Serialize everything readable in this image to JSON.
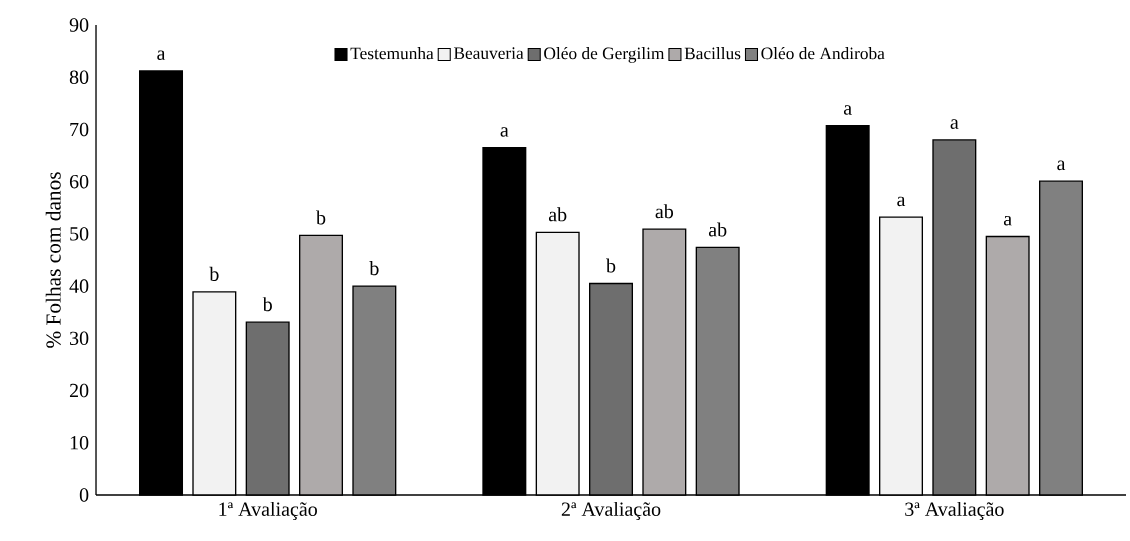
{
  "chart_data": {
    "type": "bar",
    "ylabel": "% Folhas com danos",
    "categories": [
      "1ª Avaliação",
      "2ª Avaliação",
      "3ª Avaliação"
    ],
    "series": [
      {
        "name": "Testemunha",
        "color": "#000000",
        "values": [
          81.2,
          66.5,
          70.7
        ],
        "value_labels": [
          "a",
          "a",
          "a"
        ]
      },
      {
        "name": "Beauveria",
        "color": "#f2f2f2",
        "values": [
          38.9,
          50.3,
          53.2
        ],
        "value_labels": [
          "b",
          "ab",
          "a"
        ]
      },
      {
        "name": "Oléo de Gergilim",
        "color": "#6e6e6e",
        "values": [
          33.1,
          40.5,
          68.0
        ],
        "value_labels": [
          "b",
          "b",
          "a"
        ]
      },
      {
        "name": "Bacillus",
        "color": "#aeaaaa",
        "values": [
          49.7,
          50.9,
          49.5
        ],
        "value_labels": [
          "b",
          "ab",
          "a"
        ]
      },
      {
        "name": "Oléo de Andiroba",
        "color": "#808080",
        "values": [
          40.0,
          47.4,
          60.1
        ],
        "value_labels": [
          "b",
          "ab",
          "a"
        ]
      }
    ],
    "ylim": [
      0,
      90
    ],
    "yticks": [
      0,
      10,
      20,
      30,
      40,
      50,
      60,
      70,
      80,
      90
    ],
    "grid": false,
    "legend": "top"
  }
}
